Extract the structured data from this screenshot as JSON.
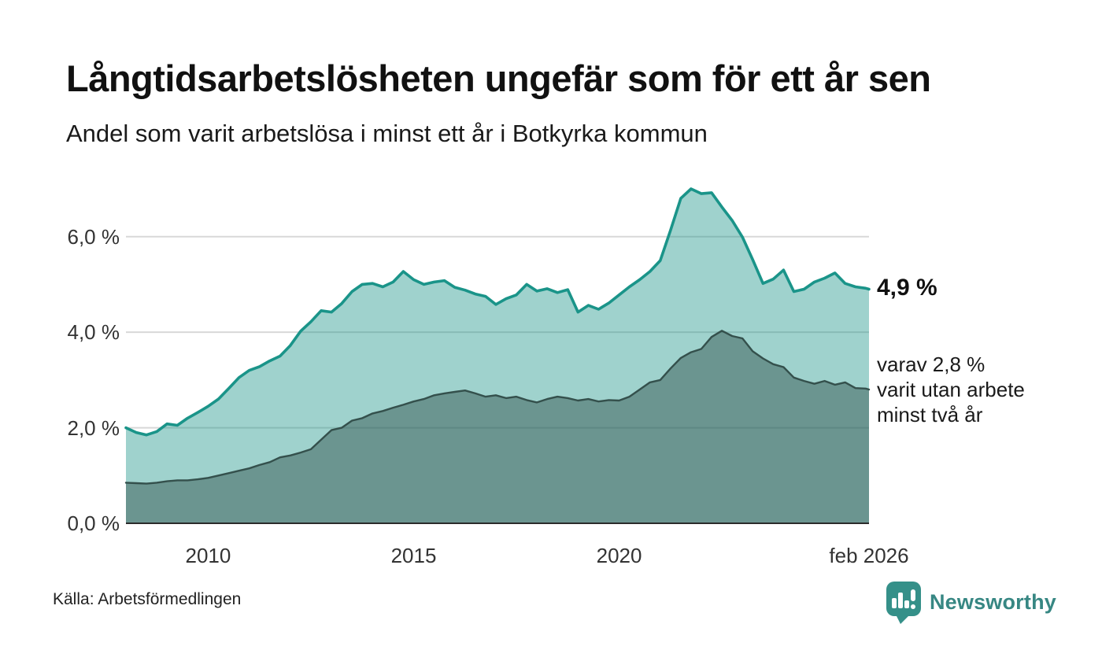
{
  "header": {
    "title": "Långtidsarbetslösheten ungefär som för ett år sen",
    "subtitle": "Andel som varit arbetslösa i minst ett år i Botkyrka kommun"
  },
  "chart_data": {
    "type": "area",
    "title": "Långtidsarbetslösheten ungefär som för ett år sen",
    "subtitle": "Andel som varit arbetslösa i minst ett år i Botkyrka kommun",
    "xlabel": "",
    "ylabel": "",
    "xlim": [
      2008,
      2026.08
    ],
    "ylim": [
      0,
      7
    ],
    "grid": true,
    "legend": "none",
    "yticks": [
      {
        "value": 0,
        "label": "0,0 %"
      },
      {
        "value": 2,
        "label": "2,0 %"
      },
      {
        "value": 4,
        "label": "4,0 %"
      },
      {
        "value": 6,
        "label": "6,0 %"
      }
    ],
    "xticks": [
      {
        "value": 2010,
        "label": "2010"
      },
      {
        "value": 2015,
        "label": "2015"
      },
      {
        "value": 2020,
        "label": "2020"
      },
      {
        "value": 2026.08,
        "label": "feb 2026"
      }
    ],
    "x": [
      2008,
      2008.25,
      2008.5,
      2008.75,
      2009,
      2009.25,
      2009.5,
      2009.75,
      2010,
      2010.25,
      2010.5,
      2010.75,
      2011,
      2011.25,
      2011.5,
      2011.75,
      2012,
      2012.25,
      2012.5,
      2012.75,
      2013,
      2013.25,
      2013.5,
      2013.75,
      2014,
      2014.25,
      2014.5,
      2014.75,
      2015,
      2015.25,
      2015.5,
      2015.75,
      2016,
      2016.25,
      2016.5,
      2016.75,
      2017,
      2017.25,
      2017.5,
      2017.75,
      2018,
      2018.25,
      2018.5,
      2018.75,
      2019,
      2019.25,
      2019.5,
      2019.75,
      2020,
      2020.25,
      2020.5,
      2020.75,
      2021,
      2021.25,
      2021.5,
      2021.75,
      2022,
      2022.25,
      2022.5,
      2022.75,
      2023,
      2023.25,
      2023.5,
      2023.75,
      2024,
      2024.25,
      2024.5,
      2024.75,
      2025,
      2025.25,
      2025.5,
      2025.75,
      2026,
      2026.08
    ],
    "series": [
      {
        "name": "Andel som varit arbetslösa i minst ett år",
        "line_color": "#1a9489",
        "fill_color": "rgba(26,148,137,0.42)",
        "line_width": 3.6,
        "values": [
          2.0,
          1.9,
          1.85,
          1.92,
          2.08,
          2.05,
          2.2,
          2.32,
          2.45,
          2.6,
          2.82,
          3.05,
          3.2,
          3.28,
          3.4,
          3.5,
          3.72,
          4.02,
          4.22,
          4.45,
          4.42,
          4.6,
          4.85,
          5.0,
          5.02,
          4.95,
          5.05,
          5.27,
          5.1,
          5.0,
          5.05,
          5.08,
          4.94,
          4.88,
          4.8,
          4.75,
          4.58,
          4.7,
          4.78,
          5.0,
          4.86,
          4.91,
          4.83,
          4.89,
          4.42,
          4.56,
          4.48,
          4.61,
          4.78,
          4.95,
          5.1,
          5.27,
          5.5,
          6.13,
          6.8,
          7.0,
          6.9,
          6.92,
          6.62,
          6.34,
          5.99,
          5.52,
          5.02,
          5.11,
          5.3,
          4.85,
          4.9,
          5.05,
          5.13,
          5.24,
          5.02,
          4.95,
          4.92,
          4.9
        ]
      },
      {
        "name": "varav andel som varit utan arbete minst två år",
        "line_color": "#34504c",
        "fill_color": "rgba(45,75,70,0.45)",
        "line_width": 2.4,
        "values": [
          0.85,
          0.84,
          0.83,
          0.85,
          0.88,
          0.9,
          0.9,
          0.92,
          0.95,
          1.0,
          1.05,
          1.1,
          1.15,
          1.22,
          1.28,
          1.38,
          1.42,
          1.48,
          1.55,
          1.75,
          1.95,
          2.0,
          2.15,
          2.2,
          2.3,
          2.35,
          2.42,
          2.48,
          2.55,
          2.6,
          2.68,
          2.72,
          2.75,
          2.78,
          2.72,
          2.65,
          2.68,
          2.62,
          2.65,
          2.58,
          2.53,
          2.6,
          2.65,
          2.62,
          2.57,
          2.6,
          2.55,
          2.58,
          2.57,
          2.65,
          2.8,
          2.95,
          3.0,
          3.24,
          3.46,
          3.58,
          3.65,
          3.9,
          4.03,
          3.92,
          3.87,
          3.6,
          3.45,
          3.33,
          3.27,
          3.05,
          2.98,
          2.92,
          2.98,
          2.9,
          2.95,
          2.83,
          2.82,
          2.8
        ]
      }
    ],
    "end_labels": [
      {
        "value": 4.9,
        "label": "4,9 %"
      },
      {
        "value": 2.8,
        "label": "varav 2,8 %\nvarit utan arbete\nminst två år"
      }
    ]
  },
  "footer": {
    "source": "Källa: Arbetsförmedlingen",
    "brand": "Newsworthy"
  },
  "colors": {
    "accent_teal": "#1a9489",
    "dark_teal": "#34504c",
    "brand_teal": "#378783",
    "grid": "#d8d8d8",
    "axis": "#2b2b2b"
  }
}
